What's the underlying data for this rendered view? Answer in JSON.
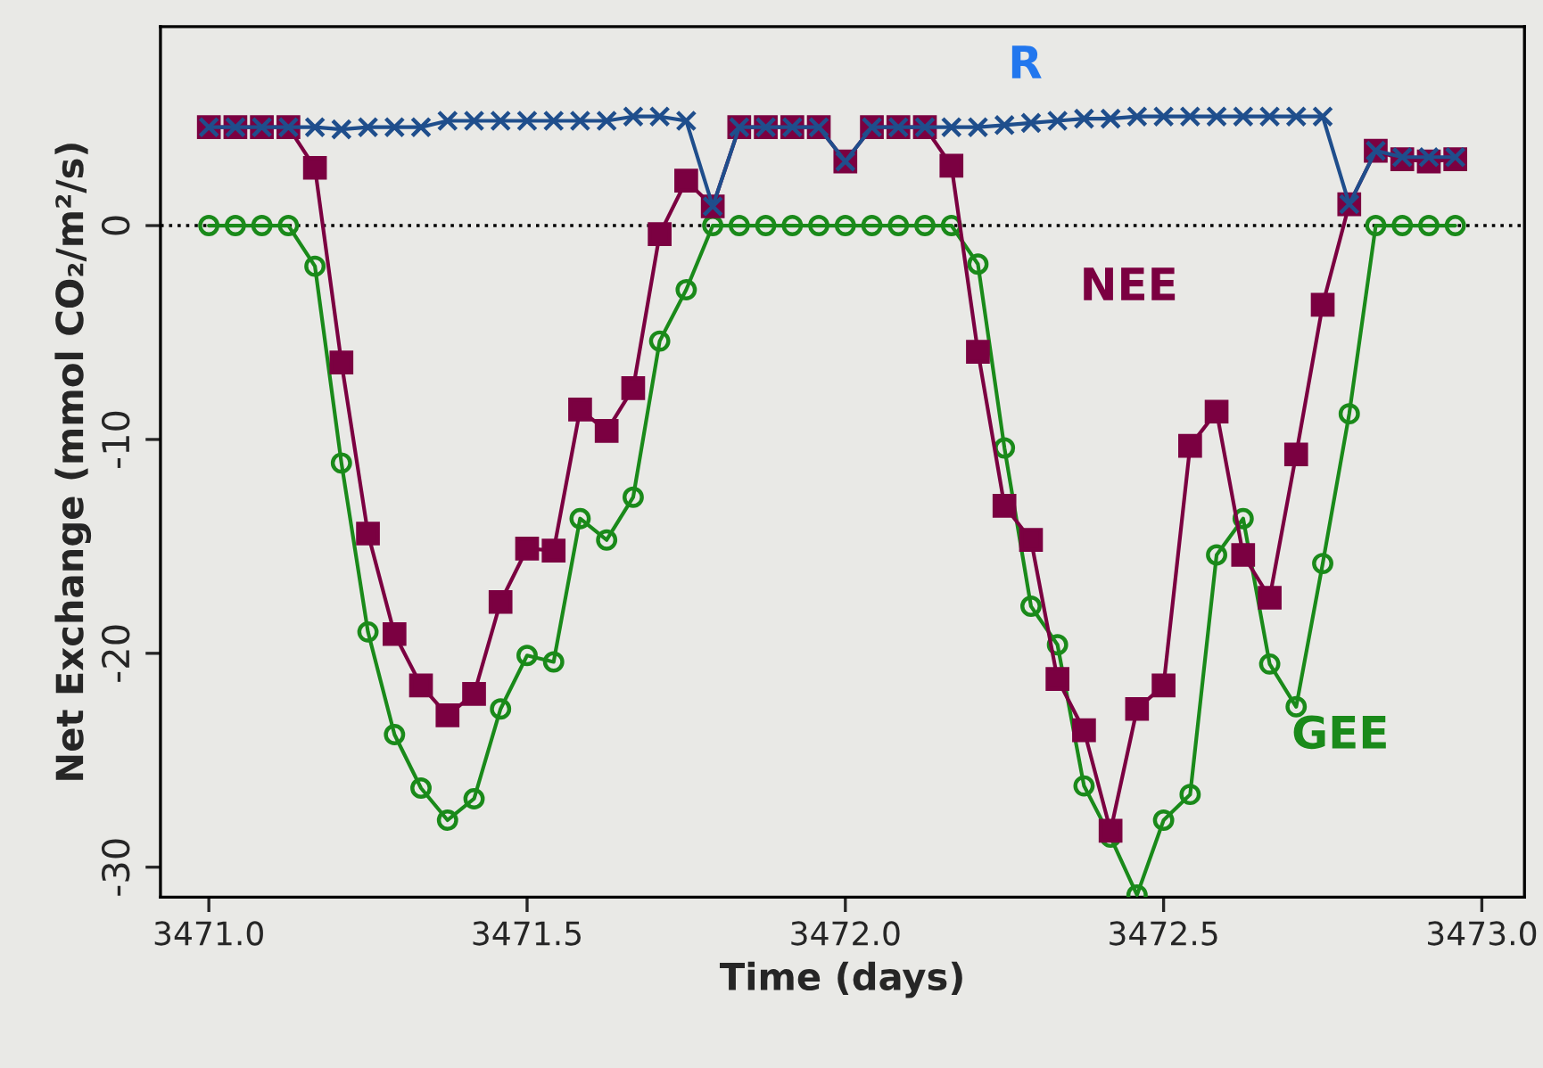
{
  "chart_data": {
    "type": "line",
    "xlabel": "Time (days)",
    "ylabel": "Net Exchange (mmol CO₂/m²/s)",
    "x": [
      3471.0,
      3471.0417,
      3471.0833,
      3471.125,
      3471.1667,
      3471.2083,
      3471.25,
      3471.2917,
      3471.3333,
      3471.375,
      3471.4167,
      3471.4583,
      3471.5,
      3471.5417,
      3471.5833,
      3471.625,
      3471.6667,
      3471.7083,
      3471.75,
      3471.7917,
      3471.8333,
      3471.875,
      3471.9167,
      3471.9583,
      3472.0,
      3472.0417,
      3472.0833,
      3472.125,
      3472.1667,
      3472.2083,
      3472.25,
      3472.2917,
      3472.3333,
      3472.375,
      3472.4167,
      3472.4583,
      3472.5,
      3472.5417,
      3472.5833,
      3472.625,
      3472.6667,
      3472.7083,
      3472.75,
      3472.7917,
      3472.8333,
      3472.875,
      3472.9167,
      3472.9583
    ],
    "series": [
      {
        "name": "R",
        "color": "#1f4e8c",
        "marker": "cross",
        "values": [
          4.6,
          4.6,
          4.6,
          4.6,
          4.6,
          4.5,
          4.6,
          4.6,
          4.6,
          4.9,
          4.9,
          4.9,
          4.9,
          4.9,
          4.9,
          4.9,
          5.1,
          5.1,
          4.9,
          0.9,
          4.6,
          4.6,
          4.6,
          4.6,
          3.0,
          4.6,
          4.6,
          4.6,
          4.6,
          4.6,
          4.7,
          4.8,
          4.9,
          5.0,
          5.0,
          5.1,
          5.1,
          5.1,
          5.1,
          5.1,
          5.1,
          5.1,
          5.1,
          1.0,
          3.5,
          3.2,
          3.2,
          3.2
        ]
      },
      {
        "name": "NEE",
        "color": "#7b0041",
        "marker": "square",
        "values": [
          4.6,
          4.6,
          4.6,
          4.6,
          2.7,
          -6.4,
          -14.4,
          -19.1,
          -21.5,
          -22.9,
          -21.9,
          -17.6,
          -15.1,
          -15.2,
          -8.6,
          -9.6,
          -7.6,
          -0.4,
          2.1,
          0.9,
          4.6,
          4.6,
          4.6,
          4.6,
          3.0,
          4.6,
          4.6,
          4.6,
          2.8,
          -5.9,
          -13.1,
          -14.7,
          -21.2,
          -23.6,
          -28.3,
          -22.6,
          -21.5,
          -10.3,
          -8.7,
          -15.4,
          -17.4,
          -10.7,
          -3.7,
          1.0,
          3.5,
          3.1,
          3.0,
          3.1
        ]
      },
      {
        "name": "GEE",
        "color": "#1a8a1a",
        "marker": "circle",
        "values": [
          0,
          0,
          0,
          0,
          -1.9,
          -11.1,
          -19.0,
          -23.8,
          -26.3,
          -27.8,
          -26.8,
          -22.6,
          -20.1,
          -20.4,
          -13.7,
          -14.7,
          -12.7,
          -5.4,
          -3.0,
          0,
          0,
          0,
          0,
          0,
          0,
          0,
          0,
          0,
          0,
          -1.8,
          -10.4,
          -17.8,
          -19.6,
          -26.2,
          -28.6,
          -31.3,
          -27.8,
          -26.6,
          -15.4,
          -13.7,
          -20.5,
          -22.5,
          -15.8,
          -8.8,
          0,
          0,
          0,
          0
        ]
      }
    ],
    "xlim": [
      3470.924,
      3473.067
    ],
    "ylim": [
      -31.4,
      9.3
    ],
    "xticks": [
      {
        "value": 3471.0,
        "label": "3471.0"
      },
      {
        "value": 3471.5,
        "label": "3471.5"
      },
      {
        "value": 3472.0,
        "label": "3472.0"
      },
      {
        "value": 3472.5,
        "label": "3472.5"
      },
      {
        "value": 3473.0,
        "label": "3473.0"
      }
    ],
    "yticks": [
      0,
      -10,
      -20,
      -30
    ],
    "ref_lines": [
      {
        "axis": "y",
        "value": 0,
        "color": "#000000",
        "line_style": "dotted"
      }
    ],
    "line_style": "solid"
  }
}
